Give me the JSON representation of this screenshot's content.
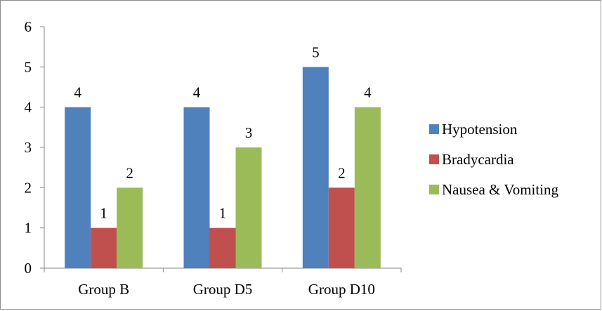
{
  "chart_data": {
    "type": "bar",
    "categories": [
      "Group B",
      "Group D5",
      "Group D10"
    ],
    "series": [
      {
        "name": "Hypotension",
        "values": [
          4,
          4,
          5
        ],
        "color": "#4F81BD"
      },
      {
        "name": "Bradycardia",
        "values": [
          1,
          1,
          2
        ],
        "color": "#C0504D"
      },
      {
        "name": "Nausea & Vomiting",
        "values": [
          2,
          3,
          4
        ],
        "color": "#9BBB59"
      }
    ],
    "ylim": [
      0,
      6
    ],
    "yticks": [
      0,
      1,
      2,
      3,
      4,
      5,
      6
    ],
    "data_labels": true,
    "grid": false,
    "legend_position": "right"
  }
}
